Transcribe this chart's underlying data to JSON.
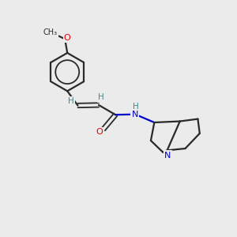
{
  "background_color": "#ebebeb",
  "bond_color": "#2a2a2a",
  "oxygen_color": "#e60000",
  "nitrogen_color": "#0000cc",
  "hydrogen_color": "#3a8a8a",
  "figsize": [
    3.0,
    3.0
  ],
  "dpi": 100,
  "xlim": [
    0,
    10
  ],
  "ylim": [
    0,
    10
  ]
}
